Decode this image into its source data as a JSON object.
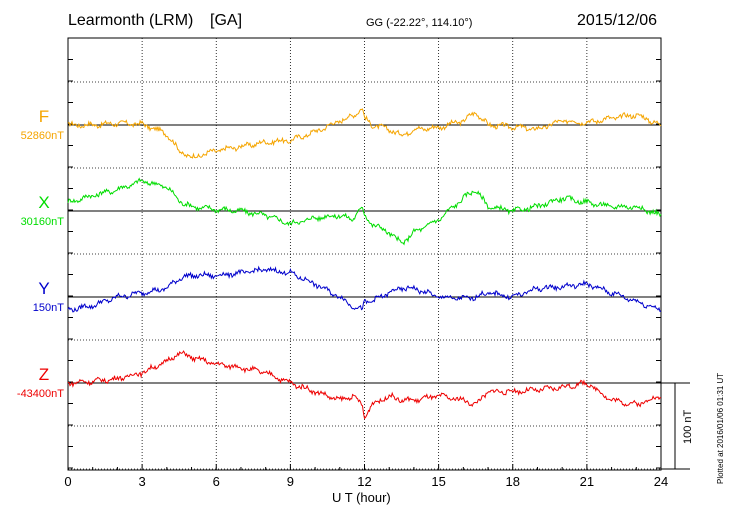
{
  "header": {
    "station": "Learmonth (LRM)",
    "network": "[GA]",
    "coords": "GG (-22.22°, 114.10°)",
    "date": "2015/12/06"
  },
  "footer": {
    "plotted": "Plotted at 2016/01/06 01:31 UT"
  },
  "chart_data": {
    "type": "line",
    "xlabel": "U T (hour)",
    "xlim": [
      0,
      24
    ],
    "xticks": [
      0,
      3,
      6,
      9,
      12,
      15,
      18,
      21,
      24
    ],
    "x_tick_labels": [
      "0",
      "3",
      "6",
      "9",
      "12",
      "15",
      "18",
      "21",
      "24"
    ],
    "scale_bar_label": "100 nT",
    "scale_bar_nT": 100,
    "grid": true,
    "x": [
      0,
      1,
      2,
      3,
      4,
      4.5,
      5,
      6,
      7,
      8,
      9,
      10,
      11,
      11.5,
      11.9,
      12,
      12.3,
      13,
      13.5,
      14,
      15,
      16,
      16.5,
      17,
      18,
      19,
      20,
      21,
      22,
      23,
      24
    ],
    "series": [
      {
        "name": "F",
        "baseline_label": "52860nT",
        "color": "#f5a500",
        "values": [
          0,
          0,
          2,
          1,
          -10,
          -30,
          -38,
          -30,
          -25,
          -20,
          -18,
          -8,
          5,
          10,
          20,
          8,
          0,
          -5,
          -12,
          -5,
          -3,
          5,
          15,
          0,
          -2,
          -5,
          5,
          3,
          8,
          12,
          0
        ]
      },
      {
        "name": "X",
        "baseline_label": "30160nT",
        "color": "#00dd00",
        "values": [
          10,
          18,
          25,
          35,
          28,
          12,
          5,
          2,
          0,
          -5,
          -15,
          -8,
          -5,
          -10,
          5,
          -5,
          -15,
          -25,
          -38,
          -25,
          -10,
          15,
          25,
          5,
          0,
          5,
          15,
          10,
          5,
          5,
          -5
        ]
      },
      {
        "name": "Y",
        "baseline_label": "150nT",
        "color": "#0000cc",
        "values": [
          -15,
          -10,
          0,
          5,
          10,
          22,
          25,
          25,
          28,
          32,
          28,
          15,
          0,
          -10,
          -15,
          -5,
          -5,
          5,
          10,
          10,
          0,
          -2,
          0,
          5,
          0,
          10,
          12,
          15,
          5,
          -5,
          -15
        ]
      },
      {
        "name": "Z",
        "baseline_label": "-43400nT",
        "color": "#ee0000",
        "values": [
          0,
          2,
          5,
          12,
          25,
          35,
          30,
          22,
          18,
          12,
          0,
          -10,
          -20,
          -15,
          -25,
          -40,
          -25,
          -15,
          -20,
          -20,
          -15,
          -20,
          -25,
          -10,
          -10,
          -8,
          -5,
          0,
          -20,
          -25,
          -15
        ]
      }
    ]
  }
}
